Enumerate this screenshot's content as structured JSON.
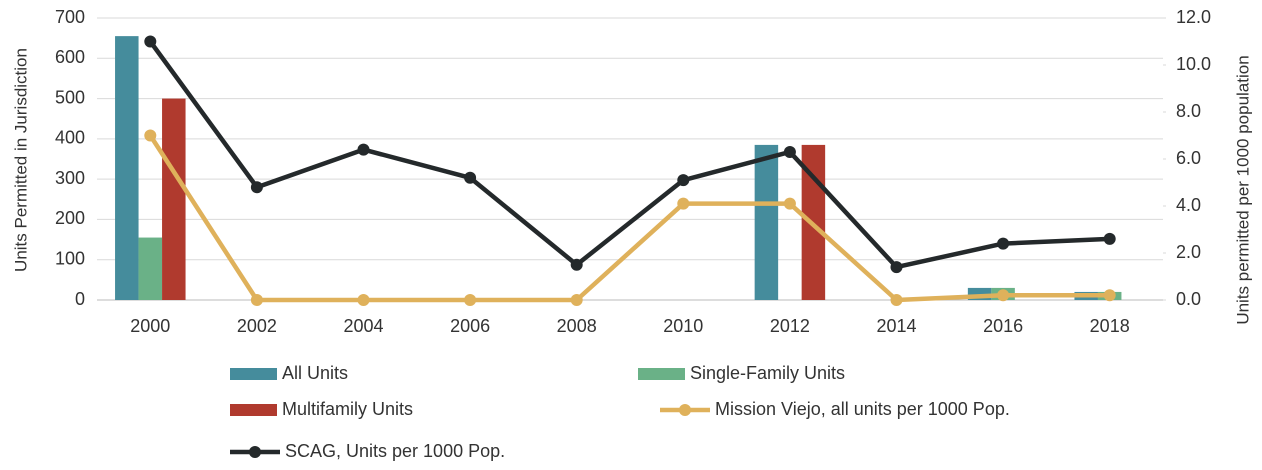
{
  "chart_data": {
    "type": "bar-line",
    "categories": [
      "2000",
      "2002",
      "2004",
      "2006",
      "2008",
      "2010",
      "2012",
      "2014",
      "2016",
      "2018"
    ],
    "ylabel": "Units Permitted in Jurisdiction",
    "y2label": "Units permitted per 1000 population",
    "ylim": [
      0,
      700
    ],
    "yticks": [
      0,
      100,
      200,
      300,
      400,
      500,
      600,
      700
    ],
    "y2lim": [
      0,
      12
    ],
    "y2ticks": [
      {
        "value": 0,
        "label": "0.0"
      },
      {
        "value": 2,
        "label": "2.0"
      },
      {
        "value": 4,
        "label": "4.0"
      },
      {
        "value": 6,
        "label": "6.0"
      },
      {
        "value": 8,
        "label": "8.0"
      },
      {
        "value": 10,
        "label": "10.0"
      },
      {
        "value": 12,
        "label": "12.0"
      }
    ],
    "series": [
      {
        "name": "All Units",
        "kind": "bar",
        "color": "#458c9c",
        "values": [
          655,
          0,
          0,
          0,
          0,
          0,
          385,
          0,
          30,
          20
        ]
      },
      {
        "name": "Single-Family Units",
        "kind": "bar",
        "color": "#6ab187",
        "values": [
          155,
          0,
          0,
          0,
          0,
          0,
          0,
          0,
          30,
          20
        ]
      },
      {
        "name": "Multifamily Units",
        "kind": "bar",
        "color": "#b03a2e",
        "values": [
          500,
          0,
          0,
          0,
          0,
          0,
          385,
          0,
          0,
          0
        ]
      },
      {
        "name": "Mission Viejo, all units per 1000 Pop.",
        "kind": "line",
        "axis": "y2",
        "color": "#dfb15b",
        "values": [
          7.0,
          0.0,
          0.0,
          0.0,
          0.0,
          4.1,
          4.1,
          0.0,
          0.2,
          0.2
        ]
      },
      {
        "name": "SCAG, Units per 1000 Pop.",
        "kind": "line",
        "axis": "y2",
        "color": "#24292b",
        "values": [
          11.0,
          4.8,
          6.4,
          5.2,
          1.5,
          5.1,
          6.3,
          1.4,
          2.4,
          2.6
        ]
      }
    ]
  }
}
